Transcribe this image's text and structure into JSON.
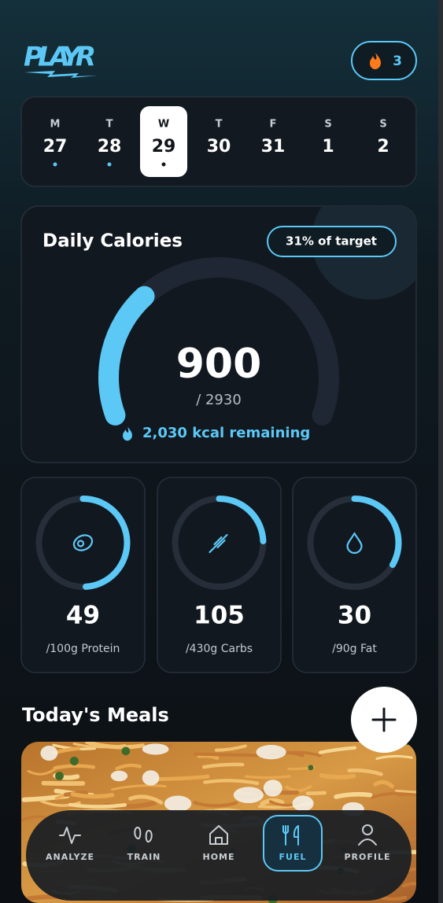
{
  "header": {
    "logo": "PLAYR",
    "streak": 3
  },
  "accent": "#5cc8f5",
  "week": {
    "selected": 2,
    "days": [
      {
        "weekday": "M",
        "day": 27,
        "logged": true
      },
      {
        "weekday": "T",
        "day": 28,
        "logged": true
      },
      {
        "weekday": "W",
        "day": 29,
        "logged": true
      },
      {
        "weekday": "T",
        "day": 30,
        "logged": false
      },
      {
        "weekday": "F",
        "day": 31,
        "logged": false
      },
      {
        "weekday": "S",
        "day": 1,
        "logged": false
      },
      {
        "weekday": "S",
        "day": 2,
        "logged": false
      }
    ]
  },
  "calories": {
    "title": "Daily Calories",
    "badge": "31% of target",
    "consumed": 900,
    "target": {
      "value": 2930,
      "label": "/ 2930"
    },
    "remaining": "2,030 kcal remaining"
  },
  "macros": [
    {
      "value": 49,
      "target": {
        "value": 100,
        "label": "/100g Protein"
      }
    },
    {
      "value": 105,
      "target": {
        "value": 430,
        "label": "/430g Carbs"
      }
    },
    {
      "value": 30,
      "target": {
        "value": 90,
        "label": "/90g Fat"
      }
    }
  ],
  "meals": {
    "title": "Today's Meals"
  },
  "nav": {
    "active": 3,
    "items": [
      "ANALYZE",
      "TRAIN",
      "HOME",
      "FUEL",
      "PROFILE"
    ]
  }
}
